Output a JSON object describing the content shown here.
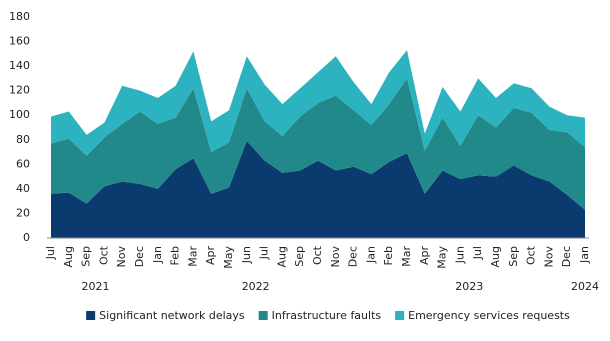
{
  "chart_data": {
    "type": "stacked_area",
    "categories": [
      "Jul",
      "Aug",
      "Sep",
      "Oct",
      "Nov",
      "Dec",
      "Jan",
      "Feb",
      "Mar",
      "Apr",
      "May",
      "Jun",
      "Jul",
      "Aug",
      "Sep",
      "Oct",
      "Nov",
      "Dec",
      "Jan",
      "Feb",
      "Mar",
      "Apr",
      "May",
      "Jun",
      "Jul",
      "Aug",
      "Sep",
      "Oct",
      "Nov",
      "Dec",
      "Jan"
    ],
    "category_groups": [
      {
        "label": "2021",
        "count": 6
      },
      {
        "label": "2022",
        "count": 12
      },
      {
        "label": "2023",
        "count": 12
      },
      {
        "label": "2024",
        "count": 1
      }
    ],
    "series": [
      {
        "name": "Significant network delays",
        "color": "#0b3a6e",
        "values": [
          36,
          37,
          28,
          42,
          46,
          44,
          40,
          56,
          65,
          36,
          41,
          79,
          63,
          53,
          55,
          63,
          55,
          58,
          52,
          62,
          69,
          36,
          55,
          48,
          51,
          50,
          59,
          51,
          46,
          35,
          23
        ]
      },
      {
        "name": "Infrastructure faults",
        "color": "#22898b",
        "values": [
          41,
          44,
          39,
          40,
          47,
          59,
          53,
          42,
          57,
          34,
          37,
          43,
          32,
          30,
          44,
          47,
          61,
          46,
          40,
          47,
          61,
          35,
          43,
          27,
          49,
          40,
          47,
          51,
          42,
          51,
          51
        ]
      },
      {
        "name": "Emergency services requests",
        "color": "#2db3bf",
        "values": [
          22,
          22,
          17,
          12,
          31,
          17,
          21,
          26,
          30,
          25,
          26,
          26,
          30,
          26,
          23,
          25,
          32,
          23,
          17,
          26,
          23,
          14,
          25,
          28,
          30,
          24,
          20,
          20,
          19,
          14,
          24
        ]
      }
    ],
    "ylim": [
      0,
      180
    ],
    "yticks": [
      0,
      20,
      40,
      60,
      80,
      100,
      120,
      140,
      160,
      180
    ],
    "legend": "bottom"
  }
}
